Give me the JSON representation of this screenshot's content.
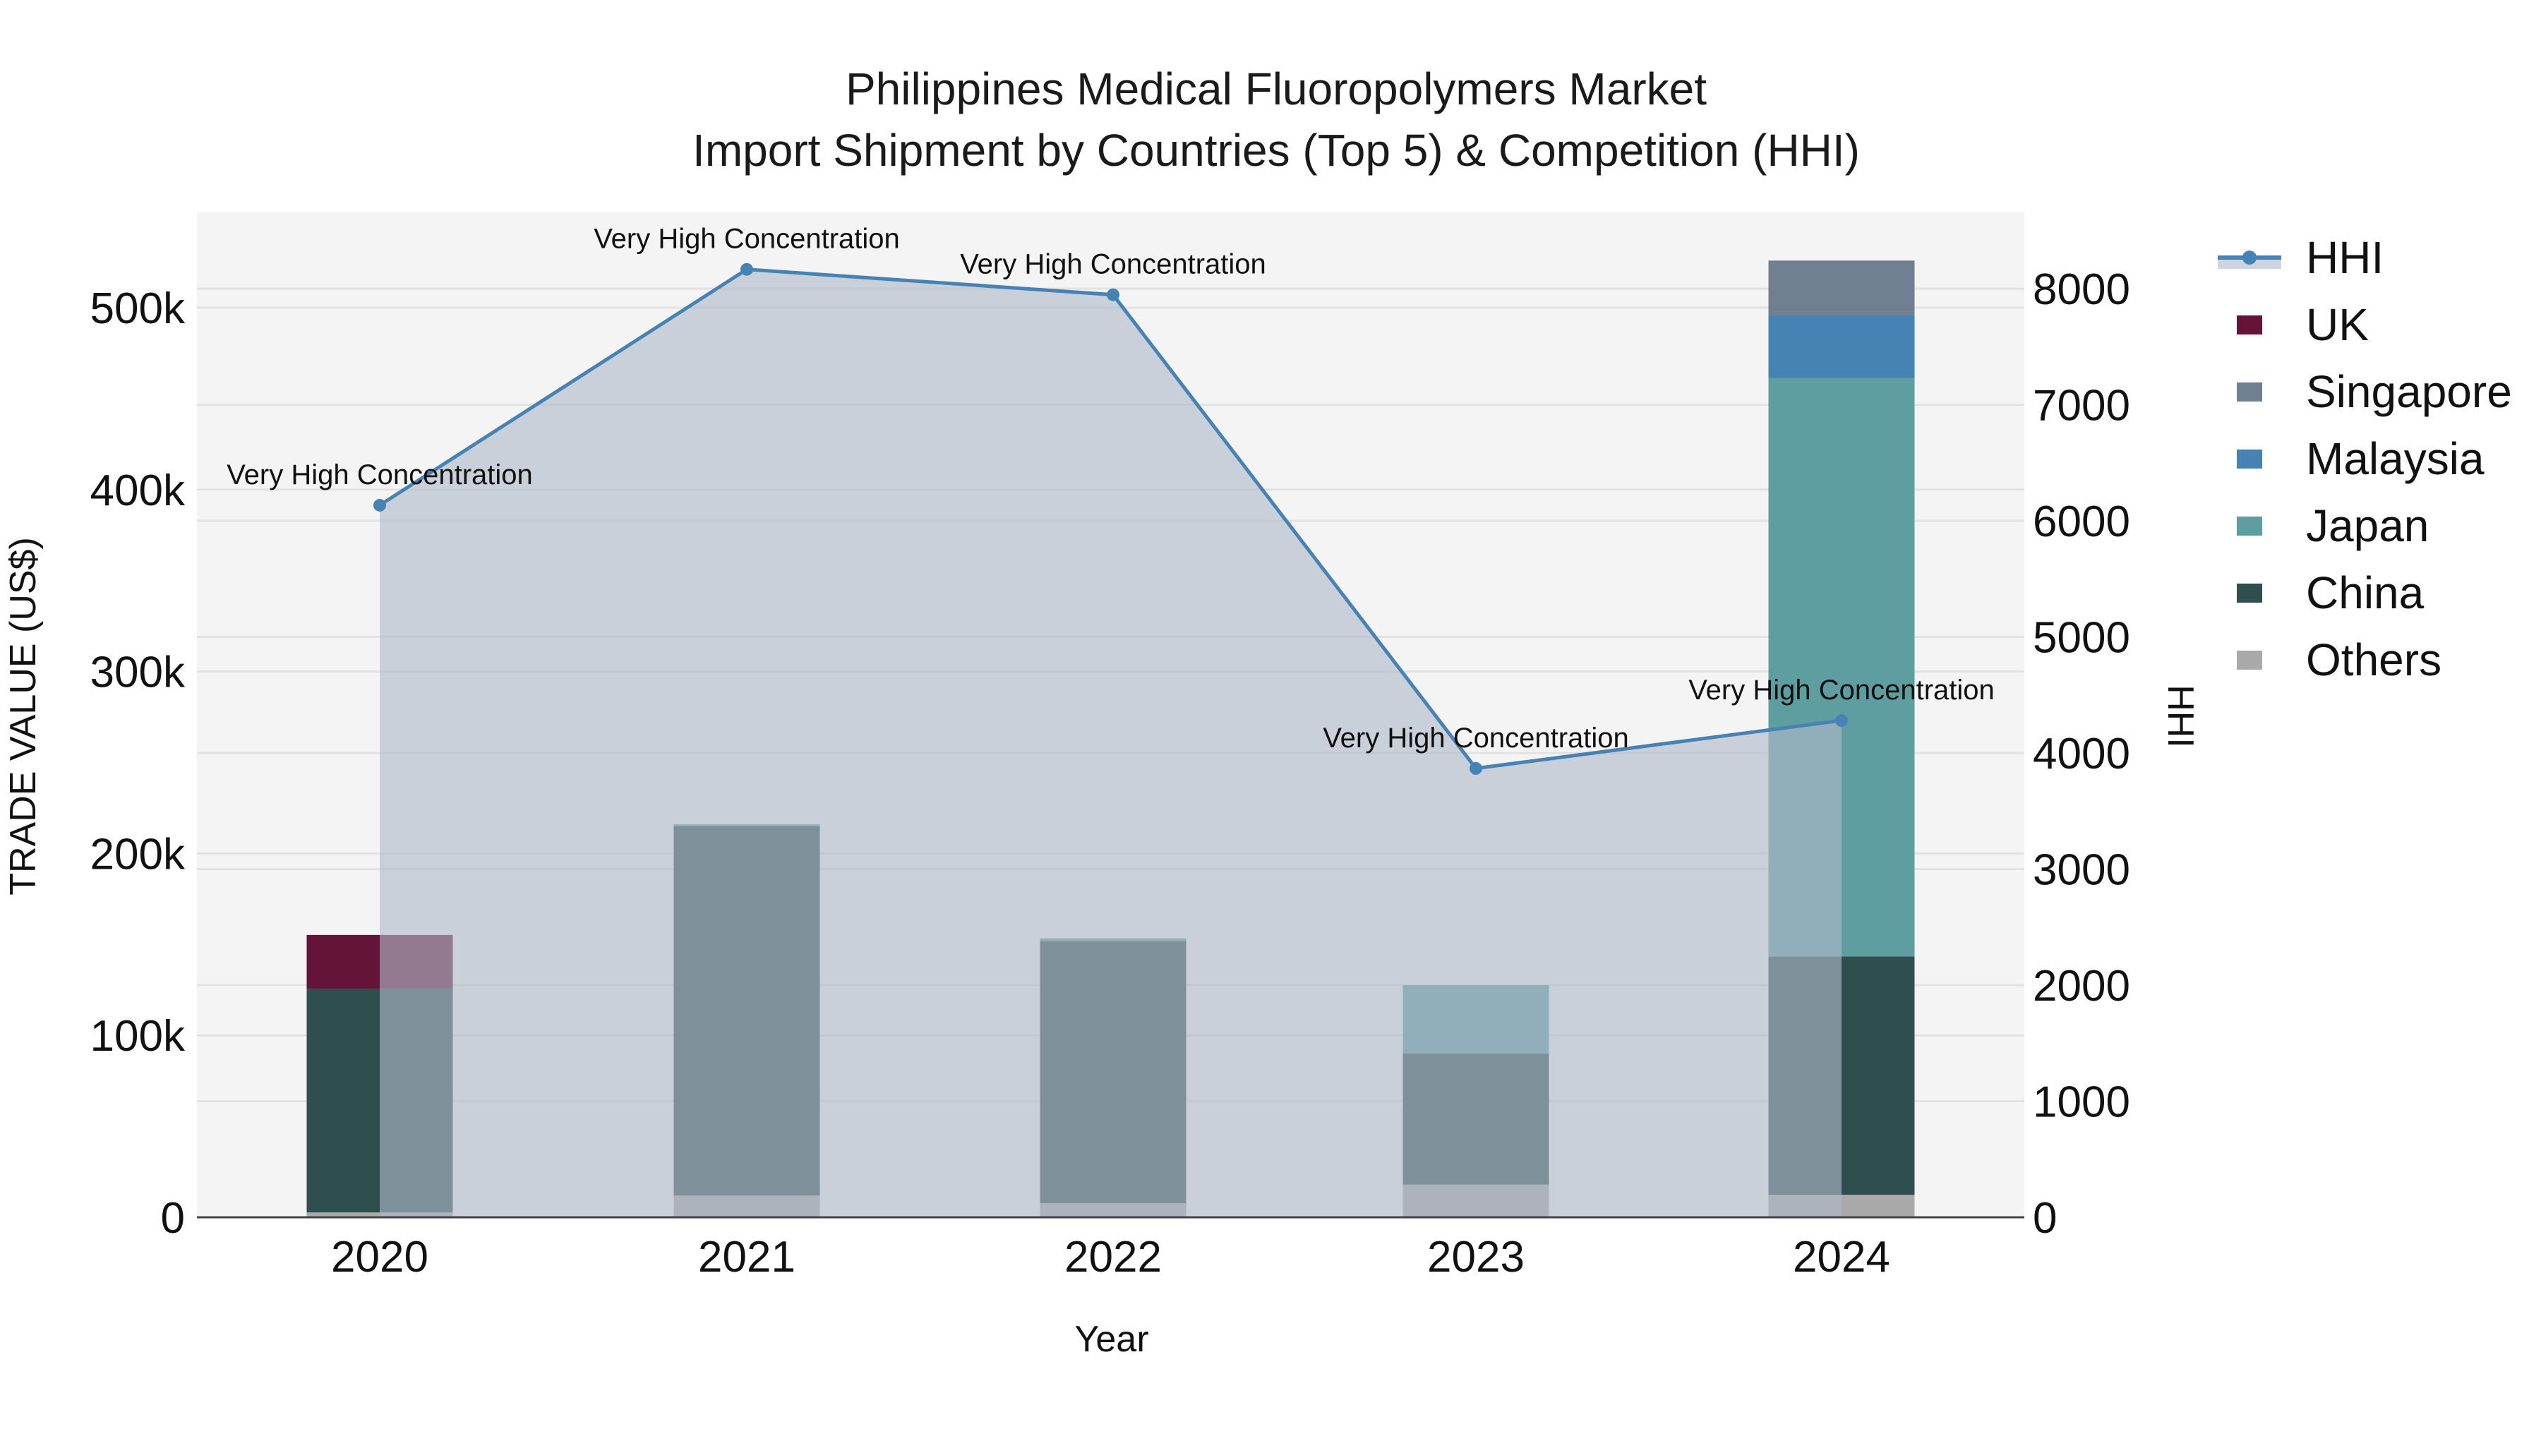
{
  "title": {
    "line1": "Philippines Medical Fluoropolymers Market",
    "line2": "Import Shipment by Countries (Top 5) & Competition (HHI)"
  },
  "axes": {
    "x_title": "Year",
    "y_left_title": "TRADE VALUE (US$)",
    "y_right_title": "HHI",
    "y_left_ticks": [
      "0",
      "100k",
      "200k",
      "300k",
      "400k",
      "500k"
    ],
    "y_right_ticks": [
      "0",
      "1000",
      "2000",
      "3000",
      "4000",
      "5000",
      "6000",
      "7000",
      "8000"
    ]
  },
  "legend": [
    {
      "name": "HHI",
      "type": "line",
      "color": "#4682B4"
    },
    {
      "name": "UK",
      "type": "bar",
      "color": "#641436"
    },
    {
      "name": "Singapore",
      "type": "bar",
      "color": "#708090"
    },
    {
      "name": "Malaysia",
      "type": "bar",
      "color": "#4682B4"
    },
    {
      "name": "Japan",
      "type": "bar",
      "color": "#5F9EA0"
    },
    {
      "name": "China",
      "type": "bar",
      "color": "#2F4F4F"
    },
    {
      "name": "Others",
      "type": "bar",
      "color": "#A9A9A9"
    }
  ],
  "colors": {
    "plot_bg": "#F4F4F4",
    "grid": "#E2E2E2",
    "hhi_line": "#4682B4",
    "hhi_fill": "rgba(176,186,202,0.62)",
    "axis_line": "#444444"
  },
  "chart_data": {
    "type": "bar",
    "stacked": true,
    "title": "Philippines Medical Fluoropolymers Market — Import Shipment by Countries (Top 5) & Competition (HHI)",
    "xlabel": "Year",
    "ylabel": "TRADE VALUE (US$)",
    "y2label": "HHI",
    "categories": [
      "2020",
      "2021",
      "2022",
      "2023",
      "2024"
    ],
    "ylim": [
      0,
      553000
    ],
    "y2lim": [
      0,
      8660
    ],
    "grid": true,
    "legend_position": "right",
    "series": [
      {
        "name": "Others",
        "color": "#A9A9A9",
        "values": [
          2700,
          12000,
          7800,
          18000,
          12400
        ]
      },
      {
        "name": "China",
        "color": "#2F4F4F",
        "values": [
          123000,
          203000,
          144000,
          72000,
          131000
        ]
      },
      {
        "name": "Japan",
        "color": "#5F9EA0",
        "values": [
          0,
          1000,
          1500,
          37600,
          318000
        ]
      },
      {
        "name": "Malaysia",
        "color": "#4682B4",
        "values": [
          0,
          0,
          0,
          0,
          34500
        ]
      },
      {
        "name": "Singapore",
        "color": "#708090",
        "values": [
          0,
          0,
          0,
          0,
          30000
        ]
      },
      {
        "name": "UK",
        "color": "#641436",
        "values": [
          29500,
          0,
          0,
          0,
          0
        ]
      }
    ],
    "line_series": {
      "name": "HHI",
      "axis": "right",
      "type": "line+area",
      "color": "#4682B4",
      "values": [
        6134,
        8166,
        7947,
        3867,
        4280
      ]
    },
    "annotations": [
      {
        "x": "2020",
        "text": "Very High Concentration"
      },
      {
        "x": "2021",
        "text": "Very High Concentration"
      },
      {
        "x": "2022",
        "text": "Very High Concentration"
      },
      {
        "x": "2023",
        "text": "Very High Concentration"
      },
      {
        "x": "2024",
        "text": "Very High Concentration"
      }
    ]
  }
}
